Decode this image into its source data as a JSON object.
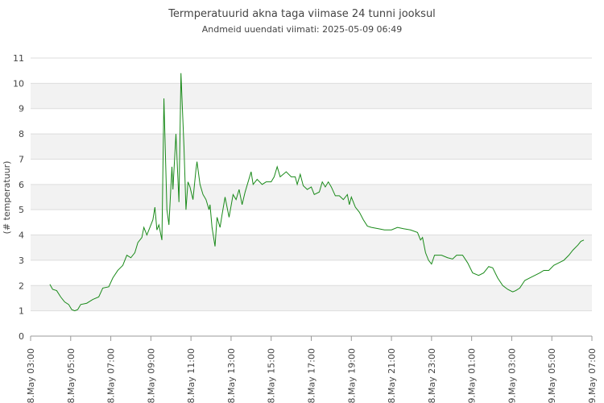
{
  "chart_data": {
    "type": "line",
    "title": "Termperatuurid akna taga viimase 24 tunni jooksul",
    "subtitle": "Andmeid uuendati viimati: 2025-05-09 06:49",
    "y_label": "(# temperatuur)",
    "color": "#1a8a1a",
    "grid_bands": true,
    "xlim": [
      3,
      31
    ],
    "xticks": [
      {
        "value": 3,
        "label": "08.May 03:00"
      },
      {
        "value": 5,
        "label": "08.May 05:00"
      },
      {
        "value": 7,
        "label": "08.May 07:00"
      },
      {
        "value": 9,
        "label": "08.May 09:00"
      },
      {
        "value": 11,
        "label": "08.May 11:00"
      },
      {
        "value": 13,
        "label": "08.May 13:00"
      },
      {
        "value": 15,
        "label": "08.May 15:00"
      },
      {
        "value": 17,
        "label": "08.May 17:00"
      },
      {
        "value": 19,
        "label": "08.May 19:00"
      },
      {
        "value": 21,
        "label": "08.May 21:00"
      },
      {
        "value": 23,
        "label": "08.May 23:00"
      },
      {
        "value": 25,
        "label": "09.May 01:00"
      },
      {
        "value": 27,
        "label": "09.May 03:00"
      },
      {
        "value": 29,
        "label": "09.May 05:00"
      },
      {
        "value": 31,
        "label": "09.May 07:00"
      }
    ],
    "ylim": [
      0,
      11
    ],
    "yticks": [
      0,
      1,
      2,
      3,
      4,
      5,
      6,
      7,
      8,
      9,
      10,
      11
    ],
    "x": [
      3.96,
      4.1,
      4.3,
      4.5,
      4.7,
      4.9,
      5.05,
      5.2,
      5.35,
      5.5,
      5.8,
      6.1,
      6.4,
      6.6,
      6.9,
      7.1,
      7.35,
      7.6,
      7.8,
      8.0,
      8.2,
      8.35,
      8.55,
      8.65,
      8.8,
      8.95,
      9.1,
      9.2,
      9.3,
      9.4,
      9.55,
      9.65,
      9.8,
      9.9,
      10.05,
      10.1,
      10.25,
      10.4,
      10.5,
      10.65,
      10.75,
      10.85,
      10.95,
      11.1,
      11.25,
      11.3,
      11.45,
      11.6,
      11.75,
      11.9,
      11.95,
      12.05,
      12.2,
      12.3,
      12.45,
      12.55,
      12.7,
      12.9,
      13.1,
      13.25,
      13.4,
      13.55,
      13.7,
      13.85,
      14.0,
      14.1,
      14.3,
      14.55,
      14.75,
      15.0,
      15.15,
      15.3,
      15.45,
      15.75,
      16.0,
      16.2,
      16.3,
      16.45,
      16.6,
      16.8,
      17.0,
      17.15,
      17.4,
      17.55,
      17.7,
      17.85,
      18.0,
      18.2,
      18.4,
      18.6,
      18.8,
      18.9,
      19.0,
      19.2,
      19.4,
      19.6,
      19.8,
      20.0,
      20.35,
      20.65,
      21.0,
      21.3,
      21.6,
      21.95,
      22.3,
      22.45,
      22.55,
      22.7,
      22.85,
      23.0,
      23.15,
      23.5,
      23.8,
      24.05,
      24.25,
      24.55,
      24.8,
      25.05,
      25.35,
      25.6,
      25.85,
      26.05,
      26.3,
      26.55,
      26.8,
      27.05,
      27.2,
      27.4,
      27.65,
      27.9,
      28.15,
      28.4,
      28.6,
      28.85,
      29.1,
      29.35,
      29.6,
      29.85,
      30.05,
      30.3,
      30.45,
      30.6
    ],
    "values": [
      2.05,
      1.85,
      1.8,
      1.55,
      1.35,
      1.25,
      1.05,
      1.0,
      1.05,
      1.25,
      1.3,
      1.45,
      1.55,
      1.9,
      1.95,
      2.3,
      2.6,
      2.8,
      3.2,
      3.1,
      3.3,
      3.7,
      3.9,
      4.3,
      4.0,
      4.3,
      4.6,
      5.1,
      4.2,
      4.4,
      3.8,
      9.4,
      5.0,
      4.4,
      6.7,
      5.8,
      8.0,
      5.3,
      10.4,
      7.5,
      5.0,
      6.1,
      5.9,
      5.4,
      6.6,
      6.9,
      6.0,
      5.6,
      5.4,
      5.0,
      5.2,
      4.3,
      3.55,
      4.7,
      4.3,
      4.8,
      5.5,
      4.7,
      5.6,
      5.4,
      5.8,
      5.2,
      5.7,
      6.1,
      6.5,
      6.0,
      6.2,
      6.0,
      6.1,
      6.1,
      6.3,
      6.7,
      6.3,
      6.5,
      6.3,
      6.3,
      6.0,
      6.4,
      5.95,
      5.8,
      5.9,
      5.6,
      5.7,
      6.1,
      5.9,
      6.1,
      5.9,
      5.55,
      5.55,
      5.4,
      5.6,
      5.2,
      5.5,
      5.1,
      4.9,
      4.6,
      4.35,
      4.3,
      4.25,
      4.2,
      4.2,
      4.3,
      4.25,
      4.2,
      4.1,
      3.8,
      3.9,
      3.3,
      3.0,
      2.85,
      3.2,
      3.2,
      3.1,
      3.05,
      3.2,
      3.2,
      2.9,
      2.5,
      2.4,
      2.5,
      2.75,
      2.7,
      2.3,
      2.0,
      1.85,
      1.75,
      1.8,
      1.9,
      2.2,
      2.3,
      2.4,
      2.5,
      2.6,
      2.6,
      2.8,
      2.9,
      3.0,
      3.2,
      3.4,
      3.6,
      3.75,
      3.8
    ]
  }
}
